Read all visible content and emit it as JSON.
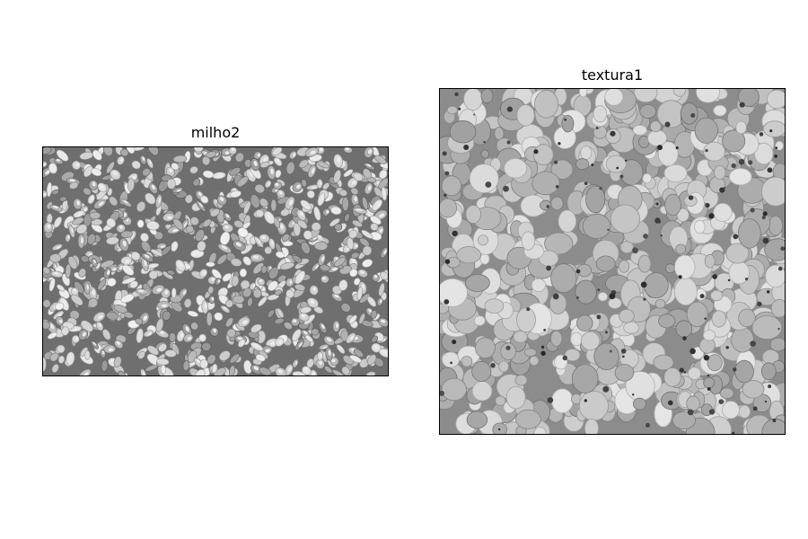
{
  "figure": {
    "panels": [
      {
        "title": "milho2",
        "image_description_icon": "corn-kernels-grayscale-image",
        "colormap": "gray"
      },
      {
        "title": "textura1",
        "image_description_icon": "granular-texture-grayscale-image",
        "colormap": "gray"
      }
    ]
  }
}
